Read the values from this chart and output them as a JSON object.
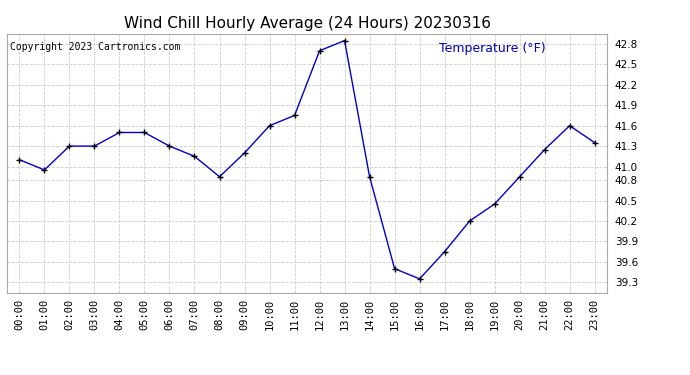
{
  "title": "Wind Chill Hourly Average (24 Hours) 20230316",
  "copyright_text": "Copyright 2023 Cartronics.com",
  "ylabel": "Temperature (°F)",
  "ylabel_color": "#0000bb",
  "hours": [
    "00:00",
    "01:00",
    "02:00",
    "03:00",
    "04:00",
    "05:00",
    "06:00",
    "07:00",
    "08:00",
    "09:00",
    "10:00",
    "11:00",
    "12:00",
    "13:00",
    "14:00",
    "15:00",
    "16:00",
    "17:00",
    "18:00",
    "19:00",
    "20:00",
    "21:00",
    "22:00",
    "23:00"
  ],
  "values": [
    41.1,
    40.95,
    41.3,
    41.3,
    41.5,
    41.5,
    41.3,
    41.15,
    40.85,
    41.2,
    41.6,
    41.75,
    42.7,
    42.85,
    40.85,
    39.5,
    39.35,
    39.75,
    40.2,
    40.45,
    40.85,
    41.25,
    41.6,
    41.35
  ],
  "line_color": "#0000cc",
  "marker": "+",
  "marker_color": "#000000",
  "marker_size": 5,
  "ylim_min": 39.15,
  "ylim_max": 42.95,
  "ytick_right": [
    39.3,
    39.6,
    39.9,
    40.2,
    40.5,
    40.8,
    41.0,
    41.3,
    41.6,
    41.9,
    42.2,
    42.5,
    42.8
  ],
  "background_color": "#ffffff",
  "grid_color": "#cccccc",
  "title_fontsize": 11,
  "tick_fontsize": 7.5,
  "ylabel_fontsize": 9,
  "copyright_fontsize": 7
}
